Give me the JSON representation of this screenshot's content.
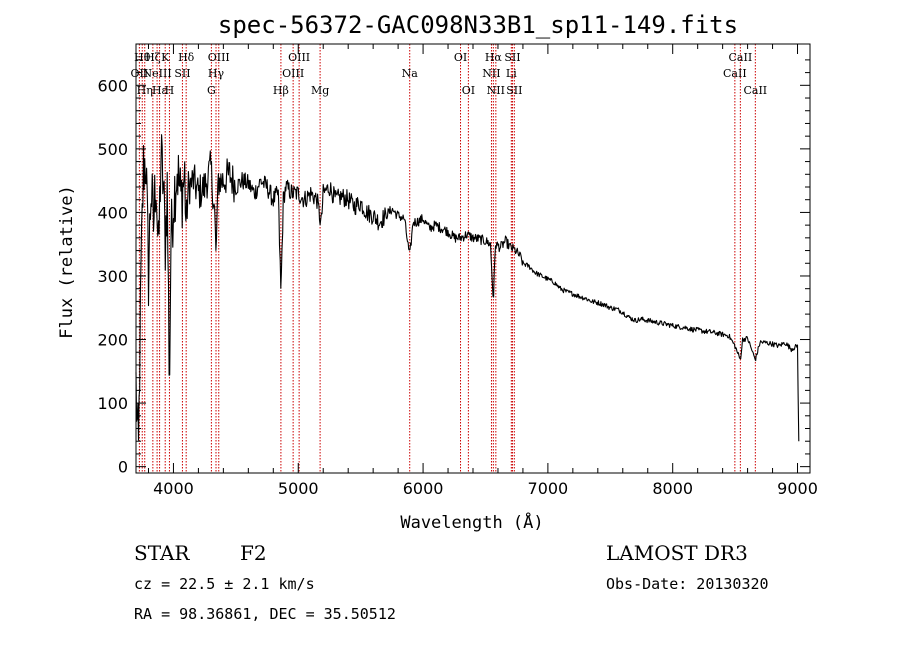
{
  "chart_data": {
    "type": "line",
    "title": "spec-56372-GAC098N33B1_sp11-149.fits",
    "xlabel": "Wavelength (Å)",
    "ylabel": "Flux (relative)",
    "xlim": [
      3700,
      9100
    ],
    "ylim": [
      -10,
      665
    ],
    "xticks": [
      4000,
      5000,
      6000,
      7000,
      8000,
      9000
    ],
    "yticks": [
      0,
      100,
      200,
      300,
      400,
      500,
      600
    ],
    "spectrum_anchors": [
      [
        3700,
        130
      ],
      [
        3710,
        60
      ],
      [
        3720,
        20
      ],
      [
        3740,
        300
      ],
      [
        3760,
        470
      ],
      [
        3780,
        480
      ],
      [
        3800,
        300
      ],
      [
        3820,
        440
      ],
      [
        3840,
        380
      ],
      [
        3860,
        460
      ],
      [
        3880,
        330
      ],
      [
        3900,
        490
      ],
      [
        3920,
        440
      ],
      [
        3934,
        350
      ],
      [
        3950,
        440
      ],
      [
        3968,
        120
      ],
      [
        3980,
        350
      ],
      [
        4000,
        420
      ],
      [
        4030,
        470
      ],
      [
        4060,
        420
      ],
      [
        4090,
        460
      ],
      [
        4101,
        380
      ],
      [
        4120,
        440
      ],
      [
        4160,
        450
      ],
      [
        4200,
        430
      ],
      [
        4250,
        440
      ],
      [
        4300,
        470
      ],
      [
        4330,
        400
      ],
      [
        4340,
        330
      ],
      [
        4360,
        450
      ],
      [
        4400,
        450
      ],
      [
        4450,
        460
      ],
      [
        4500,
        440
      ],
      [
        4550,
        450
      ],
      [
        4600,
        445
      ],
      [
        4650,
        430
      ],
      [
        4700,
        450
      ],
      [
        4750,
        440
      ],
      [
        4800,
        420
      ],
      [
        4840,
        430
      ],
      [
        4861,
        270
      ],
      [
        4880,
        420
      ],
      [
        4900,
        440
      ],
      [
        4950,
        430
      ],
      [
        5000,
        430
      ],
      [
        5050,
        420
      ],
      [
        5100,
        430
      ],
      [
        5150,
        420
      ],
      [
        5183,
        380
      ],
      [
        5200,
        430
      ],
      [
        5250,
        440
      ],
      [
        5300,
        420
      ],
      [
        5350,
        425
      ],
      [
        5400,
        420
      ],
      [
        5450,
        410
      ],
      [
        5500,
        415
      ],
      [
        5550,
        400
      ],
      [
        5600,
        395
      ],
      [
        5650,
        385
      ],
      [
        5700,
        395
      ],
      [
        5750,
        405
      ],
      [
        5800,
        395
      ],
      [
        5850,
        390
      ],
      [
        5893,
        330
      ],
      [
        5920,
        385
      ],
      [
        5950,
        385
      ],
      [
        6000,
        390
      ],
      [
        6050,
        375
      ],
      [
        6100,
        380
      ],
      [
        6150,
        375
      ],
      [
        6200,
        370
      ],
      [
        6250,
        360
      ],
      [
        6300,
        360
      ],
      [
        6350,
        365
      ],
      [
        6400,
        360
      ],
      [
        6450,
        358
      ],
      [
        6500,
        355
      ],
      [
        6540,
        350
      ],
      [
        6563,
        260
      ],
      [
        6580,
        350
      ],
      [
        6620,
        345
      ],
      [
        6660,
        355
      ],
      [
        6700,
        345
      ],
      [
        6740,
        340
      ],
      [
        6780,
        330
      ],
      [
        6800,
        320
      ],
      [
        6850,
        315
      ],
      [
        6900,
        305
      ],
      [
        6950,
        300
      ],
      [
        7000,
        295
      ],
      [
        7050,
        290
      ],
      [
        7100,
        280
      ],
      [
        7150,
        275
      ],
      [
        7200,
        272
      ],
      [
        7250,
        268
      ],
      [
        7300,
        265
      ],
      [
        7350,
        260
      ],
      [
        7400,
        258
      ],
      [
        7450,
        255
      ],
      [
        7500,
        250
      ],
      [
        7550,
        248
      ],
      [
        7600,
        243
      ],
      [
        7650,
        235
      ],
      [
        7700,
        230
      ],
      [
        7750,
        232
      ],
      [
        7800,
        230
      ],
      [
        7850,
        228
      ],
      [
        7900,
        226
      ],
      [
        7950,
        224
      ],
      [
        8000,
        222
      ],
      [
        8050,
        220
      ],
      [
        8100,
        219
      ],
      [
        8150,
        216
      ],
      [
        8200,
        215
      ],
      [
        8250,
        213
      ],
      [
        8300,
        212
      ],
      [
        8350,
        210
      ],
      [
        8400,
        208
      ],
      [
        8450,
        206
      ],
      [
        8498,
        190
      ],
      [
        8542,
        168
      ],
      [
        8560,
        200
      ],
      [
        8600,
        202
      ],
      [
        8662,
        168
      ],
      [
        8700,
        196
      ],
      [
        8750,
        195
      ],
      [
        8800,
        193
      ],
      [
        8850,
        190
      ],
      [
        8900,
        195
      ],
      [
        8950,
        185
      ],
      [
        9000,
        190
      ],
      [
        9010,
        40
      ]
    ],
    "spectral_lines": [
      {
        "wavelength": 3727,
        "label": "OII",
        "row": 2
      },
      {
        "wavelength": 3750,
        "label": "Hθ",
        "row": 1
      },
      {
        "wavelength": 3770,
        "label": "Hη",
        "row": 3
      },
      {
        "wavelength": 3835,
        "label": "Hζ",
        "row": 1
      },
      {
        "wavelength": 3869,
        "label": "NeIII",
        "row": 2
      },
      {
        "wavelength": 3889,
        "label": "Hε",
        "row": 3
      },
      {
        "wavelength": 3934,
        "label": "K",
        "row": 1
      },
      {
        "wavelength": 3968,
        "label": "H",
        "row": 3
      },
      {
        "wavelength": 4072,
        "label": "SII",
        "row": 2
      },
      {
        "wavelength": 4102,
        "label": "Hδ",
        "row": 1
      },
      {
        "wavelength": 4304,
        "label": "G",
        "row": 3
      },
      {
        "wavelength": 4341,
        "label": "Hγ",
        "row": 2
      },
      {
        "wavelength": 4363,
        "label": "OIII",
        "row": 1
      },
      {
        "wavelength": 4861,
        "label": "Hβ",
        "row": 3
      },
      {
        "wavelength": 4959,
        "label": "OIII",
        "row": 2
      },
      {
        "wavelength": 5007,
        "label": "OIII",
        "row": 1
      },
      {
        "wavelength": 5175,
        "label": "Mg",
        "row": 3
      },
      {
        "wavelength": 5893,
        "label": "Na",
        "row": 2
      },
      {
        "wavelength": 6300,
        "label": "OI",
        "row": 1
      },
      {
        "wavelength": 6363,
        "label": "OI",
        "row": 3
      },
      {
        "wavelength": 6548,
        "label": "NII",
        "row": 2
      },
      {
        "wavelength": 6563,
        "label": "Hα",
        "row": 1
      },
      {
        "wavelength": 6583,
        "label": "NII",
        "row": 3
      },
      {
        "wavelength": 6707,
        "label": "Li",
        "row": 2
      },
      {
        "wavelength": 6716,
        "label": "SII",
        "row": 1
      },
      {
        "wavelength": 6731,
        "label": "SII",
        "row": 3
      },
      {
        "wavelength": 8498,
        "label": "CaII",
        "row": 2
      },
      {
        "wavelength": 8542,
        "label": "CaII",
        "row": 1
      },
      {
        "wavelength": 8662,
        "label": "CaII",
        "row": 3
      }
    ],
    "colors": {
      "spectrum": "#000000",
      "lines": "#cc0000",
      "axes": "#000000"
    }
  },
  "info": {
    "class": "STAR",
    "subclass": "F2",
    "survey": "LAMOST DR3",
    "velocity": "cz = 22.5 ± 2.1 km/s",
    "obs_date": "Obs-Date: 20130320",
    "coords": "RA =  98.36861, DEC =  35.50512"
  }
}
